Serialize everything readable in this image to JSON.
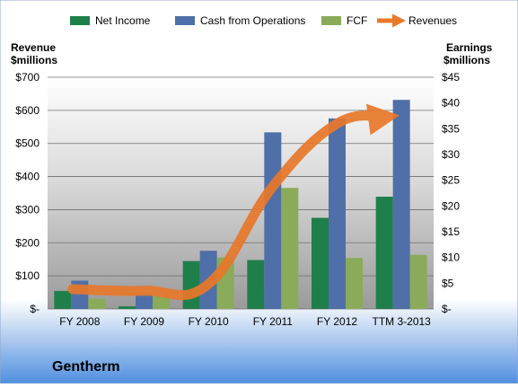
{
  "chart_data": {
    "type": "bar",
    "company": "Gentherm",
    "categories": [
      "FY 2008",
      "FY 2009",
      "FY 2010",
      "FY 2011",
      "FY 2012",
      "TTM 3-2013"
    ],
    "series": [
      {
        "name": "Net Income",
        "axis": "right",
        "color": "#1f7f4a",
        "values": [
          3.5,
          0.5,
          9.3,
          9.5,
          17.7,
          21.8
        ]
      },
      {
        "name": "Cash from Operations",
        "axis": "right",
        "color": "#4f6fa8",
        "values": [
          5.5,
          3.0,
          11.3,
          34.3,
          37.0,
          40.6
        ]
      },
      {
        "name": "FCF",
        "axis": "right",
        "color": "#8aab59",
        "values": [
          2.0,
          2.5,
          10.0,
          23.5,
          9.9,
          10.5
        ]
      },
      {
        "name": "Revenues",
        "axis": "left",
        "type": "line",
        "color": "#e8782a",
        "values": [
          60,
          55,
          75,
          370,
          560,
          580
        ]
      }
    ],
    "left_axis": {
      "label_line1": "Revenue",
      "label_line2": "$millions",
      "ylim": [
        0,
        700
      ],
      "ticks": [
        "$-",
        "$100",
        "$200",
        "$300",
        "$400",
        "$500",
        "$600",
        "$700"
      ]
    },
    "right_axis": {
      "label_line1": "Earnings",
      "label_line2": "$millions",
      "ylim": [
        0,
        45
      ],
      "ticks": [
        "$-",
        "$5",
        "$10",
        "$15",
        "$20",
        "$25",
        "$30",
        "$35",
        "$40",
        "$45"
      ]
    },
    "grid": true,
    "legend_position": "top"
  }
}
